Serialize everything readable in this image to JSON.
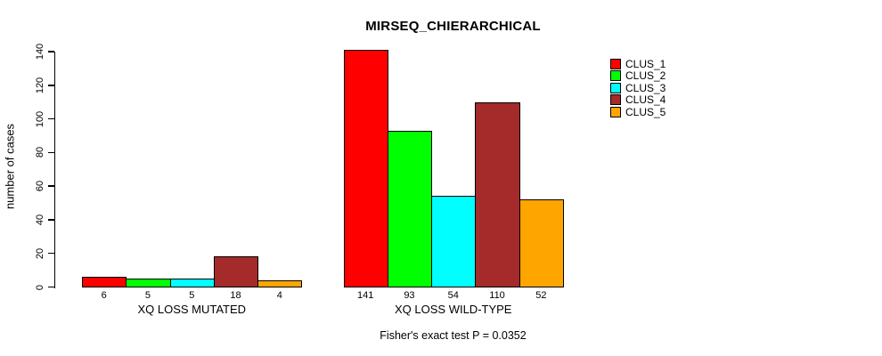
{
  "chart_data": {
    "type": "bar",
    "title": "MIRSEQ_CHIERARCHICAL",
    "ylabel": "number of cases",
    "xlabel": "",
    "ylim": [
      0,
      140
    ],
    "yticks": [
      0,
      20,
      40,
      60,
      80,
      100,
      120,
      140
    ],
    "grid": false,
    "categories": [
      "XQ LOSS MUTATED",
      "XQ LOSS WILD-TYPE"
    ],
    "series": [
      {
        "name": "CLUS_1",
        "color": "#FF0000",
        "values": [
          6,
          141
        ]
      },
      {
        "name": "CLUS_2",
        "color": "#00FF00",
        "values": [
          5,
          93
        ]
      },
      {
        "name": "CLUS_3",
        "color": "#00FFFF",
        "values": [
          5,
          54
        ]
      },
      {
        "name": "CLUS_4",
        "color": "#A52A2A",
        "values": [
          18,
          110
        ]
      },
      {
        "name": "CLUS_5",
        "color": "#FFA500",
        "values": [
          4,
          52
        ]
      }
    ],
    "show_bar_value_labels": true,
    "bar_border_color": "#000000",
    "legend": {
      "position": "top-right",
      "entries": [
        "CLUS_1",
        "CLUS_2",
        "CLUS_3",
        "CLUS_4",
        "CLUS_5"
      ]
    },
    "footer": "Fisher's exact test P = 0.0352"
  }
}
